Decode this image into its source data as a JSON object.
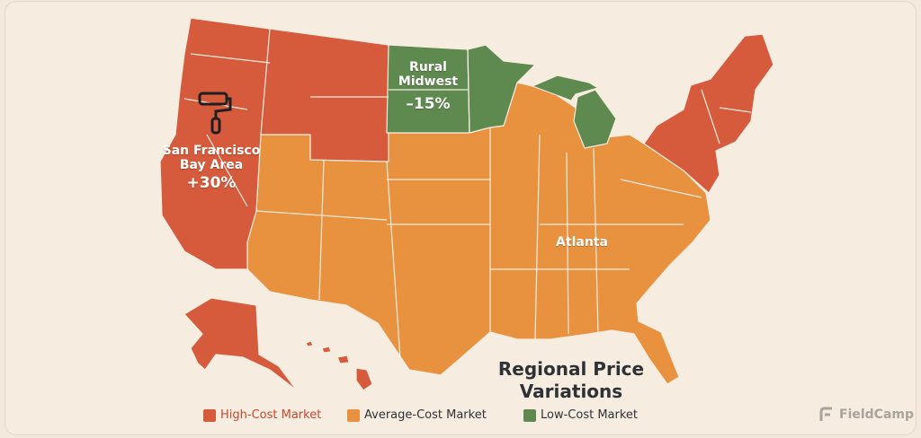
{
  "map": {
    "title_line1": "Regional Price",
    "title_line2": "Variations",
    "labels": {
      "sf_line1": "San Francisco",
      "sf_line2": "Bay Area",
      "sf_value": "+30%",
      "midwest_line1": "Rural",
      "midwest_line2": "Midwest",
      "midwest_value": "–15%",
      "atlanta": "Atlanta"
    },
    "icons": [
      "paint-roller-icon"
    ]
  },
  "legend": {
    "items": [
      {
        "label": "High-Cost Market",
        "color": "#d65a3c"
      },
      {
        "label": "Average-Cost Market",
        "color": "#e8913f"
      },
      {
        "label": "Low-Cost Market",
        "color": "#5f8a4f"
      }
    ]
  },
  "brand": {
    "name": "FieldCamp"
  },
  "colors": {
    "high": "#d65a3c",
    "average": "#e8913f",
    "low": "#5f8a4f",
    "background": "#f6ece0"
  }
}
